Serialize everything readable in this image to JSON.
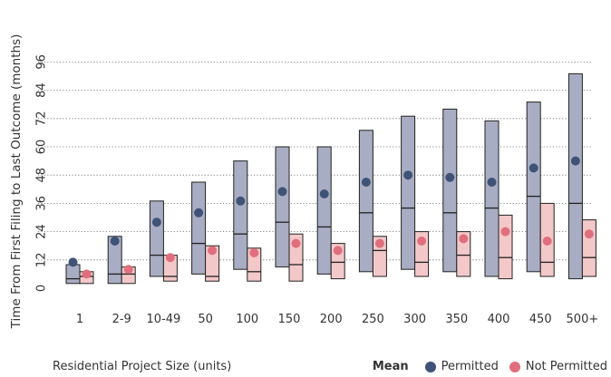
{
  "chart_data": {
    "type": "box",
    "title": "",
    "xlabel": "Residential Project Size (units)",
    "ylabel": "Time From First Filing to Last Outcome (months)",
    "ylim": [
      0,
      100
    ],
    "yticks": [
      0,
      12,
      24,
      36,
      48,
      60,
      72,
      84,
      96
    ],
    "grid": "horizontal dotted",
    "legend": {
      "title": "Mean",
      "position": "bottom-right"
    },
    "categories": [
      "1",
      "2-9",
      "10-49",
      "50",
      "100",
      "150",
      "200",
      "250",
      "300",
      "350",
      "400",
      "450",
      "500+"
    ],
    "series": [
      {
        "name": "Permitted",
        "color": "#3f5377",
        "box_fill": "#a9adc3",
        "q1": [
          2,
          2,
          5,
          6,
          8,
          9,
          6,
          7,
          8,
          7,
          5,
          7,
          4
        ],
        "median": [
          4,
          6,
          14,
          19,
          23,
          28,
          26,
          32,
          34,
          32,
          34,
          39,
          36
        ],
        "q3": [
          10,
          22,
          37,
          45,
          54,
          60,
          60,
          67,
          73,
          76,
          71,
          79,
          91
        ],
        "mean": [
          11,
          20,
          28,
          32,
          37,
          41,
          40,
          45,
          48,
          47,
          45,
          51,
          54
        ]
      },
      {
        "name": "Not Permitted",
        "color": "#e06f7e",
        "box_fill": "#f3c8c9",
        "q1": [
          2,
          2,
          3,
          3,
          3,
          3,
          4,
          5,
          5,
          5,
          4,
          5,
          5
        ],
        "median": [
          5,
          6,
          5,
          5,
          7,
          10,
          11,
          16,
          11,
          14,
          13,
          11,
          13
        ],
        "q3": [
          7,
          9,
          14,
          18,
          17,
          23,
          19,
          22,
          24,
          24,
          31,
          36,
          29
        ],
        "mean": [
          6,
          8,
          13,
          16,
          15,
          19,
          16,
          19,
          20,
          21,
          24,
          20,
          23
        ]
      }
    ]
  }
}
